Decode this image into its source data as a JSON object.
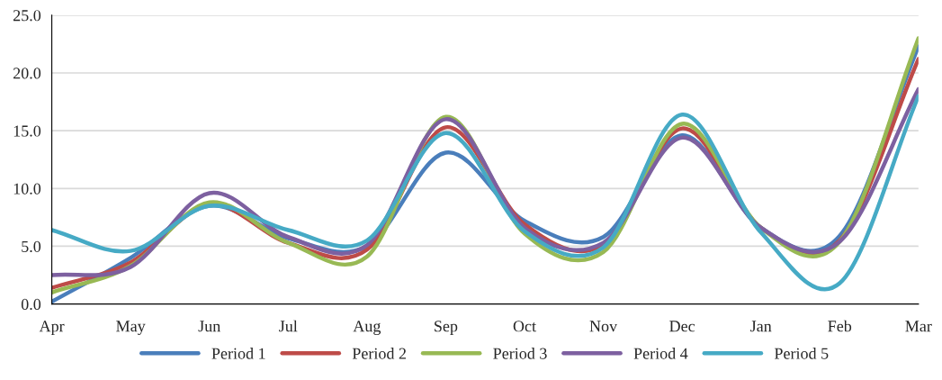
{
  "chart_data": {
    "type": "line",
    "categories": [
      "Apr",
      "May",
      "Jun",
      "Jul",
      "Aug",
      "Sep",
      "Oct",
      "Nov",
      "Dec",
      "Jan",
      "Feb",
      "Mar"
    ],
    "series": [
      {
        "name": "Period 1",
        "color": "#4a7ebb",
        "values": [
          0.2,
          4.0,
          8.5,
          5.7,
          5.0,
          13.1,
          7.2,
          5.8,
          14.6,
          6.6,
          5.9,
          22.3
        ]
      },
      {
        "name": "Period 2",
        "color": "#be4b48",
        "values": [
          1.4,
          3.6,
          8.6,
          5.3,
          4.7,
          15.3,
          6.9,
          5.1,
          15.2,
          6.6,
          5.5,
          21.2
        ]
      },
      {
        "name": "Period 3",
        "color": "#98b954",
        "values": [
          1.0,
          3.3,
          8.8,
          5.3,
          4.1,
          16.2,
          6.1,
          4.5,
          15.6,
          6.6,
          5.4,
          23.0
        ]
      },
      {
        "name": "Period 4",
        "color": "#7d60a0",
        "values": [
          2.5,
          3.2,
          9.6,
          5.8,
          5.1,
          16.0,
          6.6,
          5.3,
          14.4,
          6.6,
          5.4,
          18.6
        ]
      },
      {
        "name": "Period 5",
        "color": "#46aac5",
        "values": [
          6.4,
          4.6,
          8.5,
          6.4,
          5.5,
          14.8,
          6.3,
          4.9,
          16.4,
          6.2,
          1.8,
          18.0
        ]
      }
    ],
    "ylim": [
      0,
      25
    ],
    "yticks": [
      {
        "value": 0,
        "label": "0.0"
      },
      {
        "value": 5,
        "label": "5.0"
      },
      {
        "value": 10,
        "label": "10.0"
      },
      {
        "value": 15,
        "label": "15.0"
      },
      {
        "value": 20,
        "label": "20.0"
      },
      {
        "value": 25,
        "label": "25.0"
      }
    ],
    "grid": "y",
    "legend": "bottom",
    "marker": "none",
    "line_style": "solid"
  }
}
